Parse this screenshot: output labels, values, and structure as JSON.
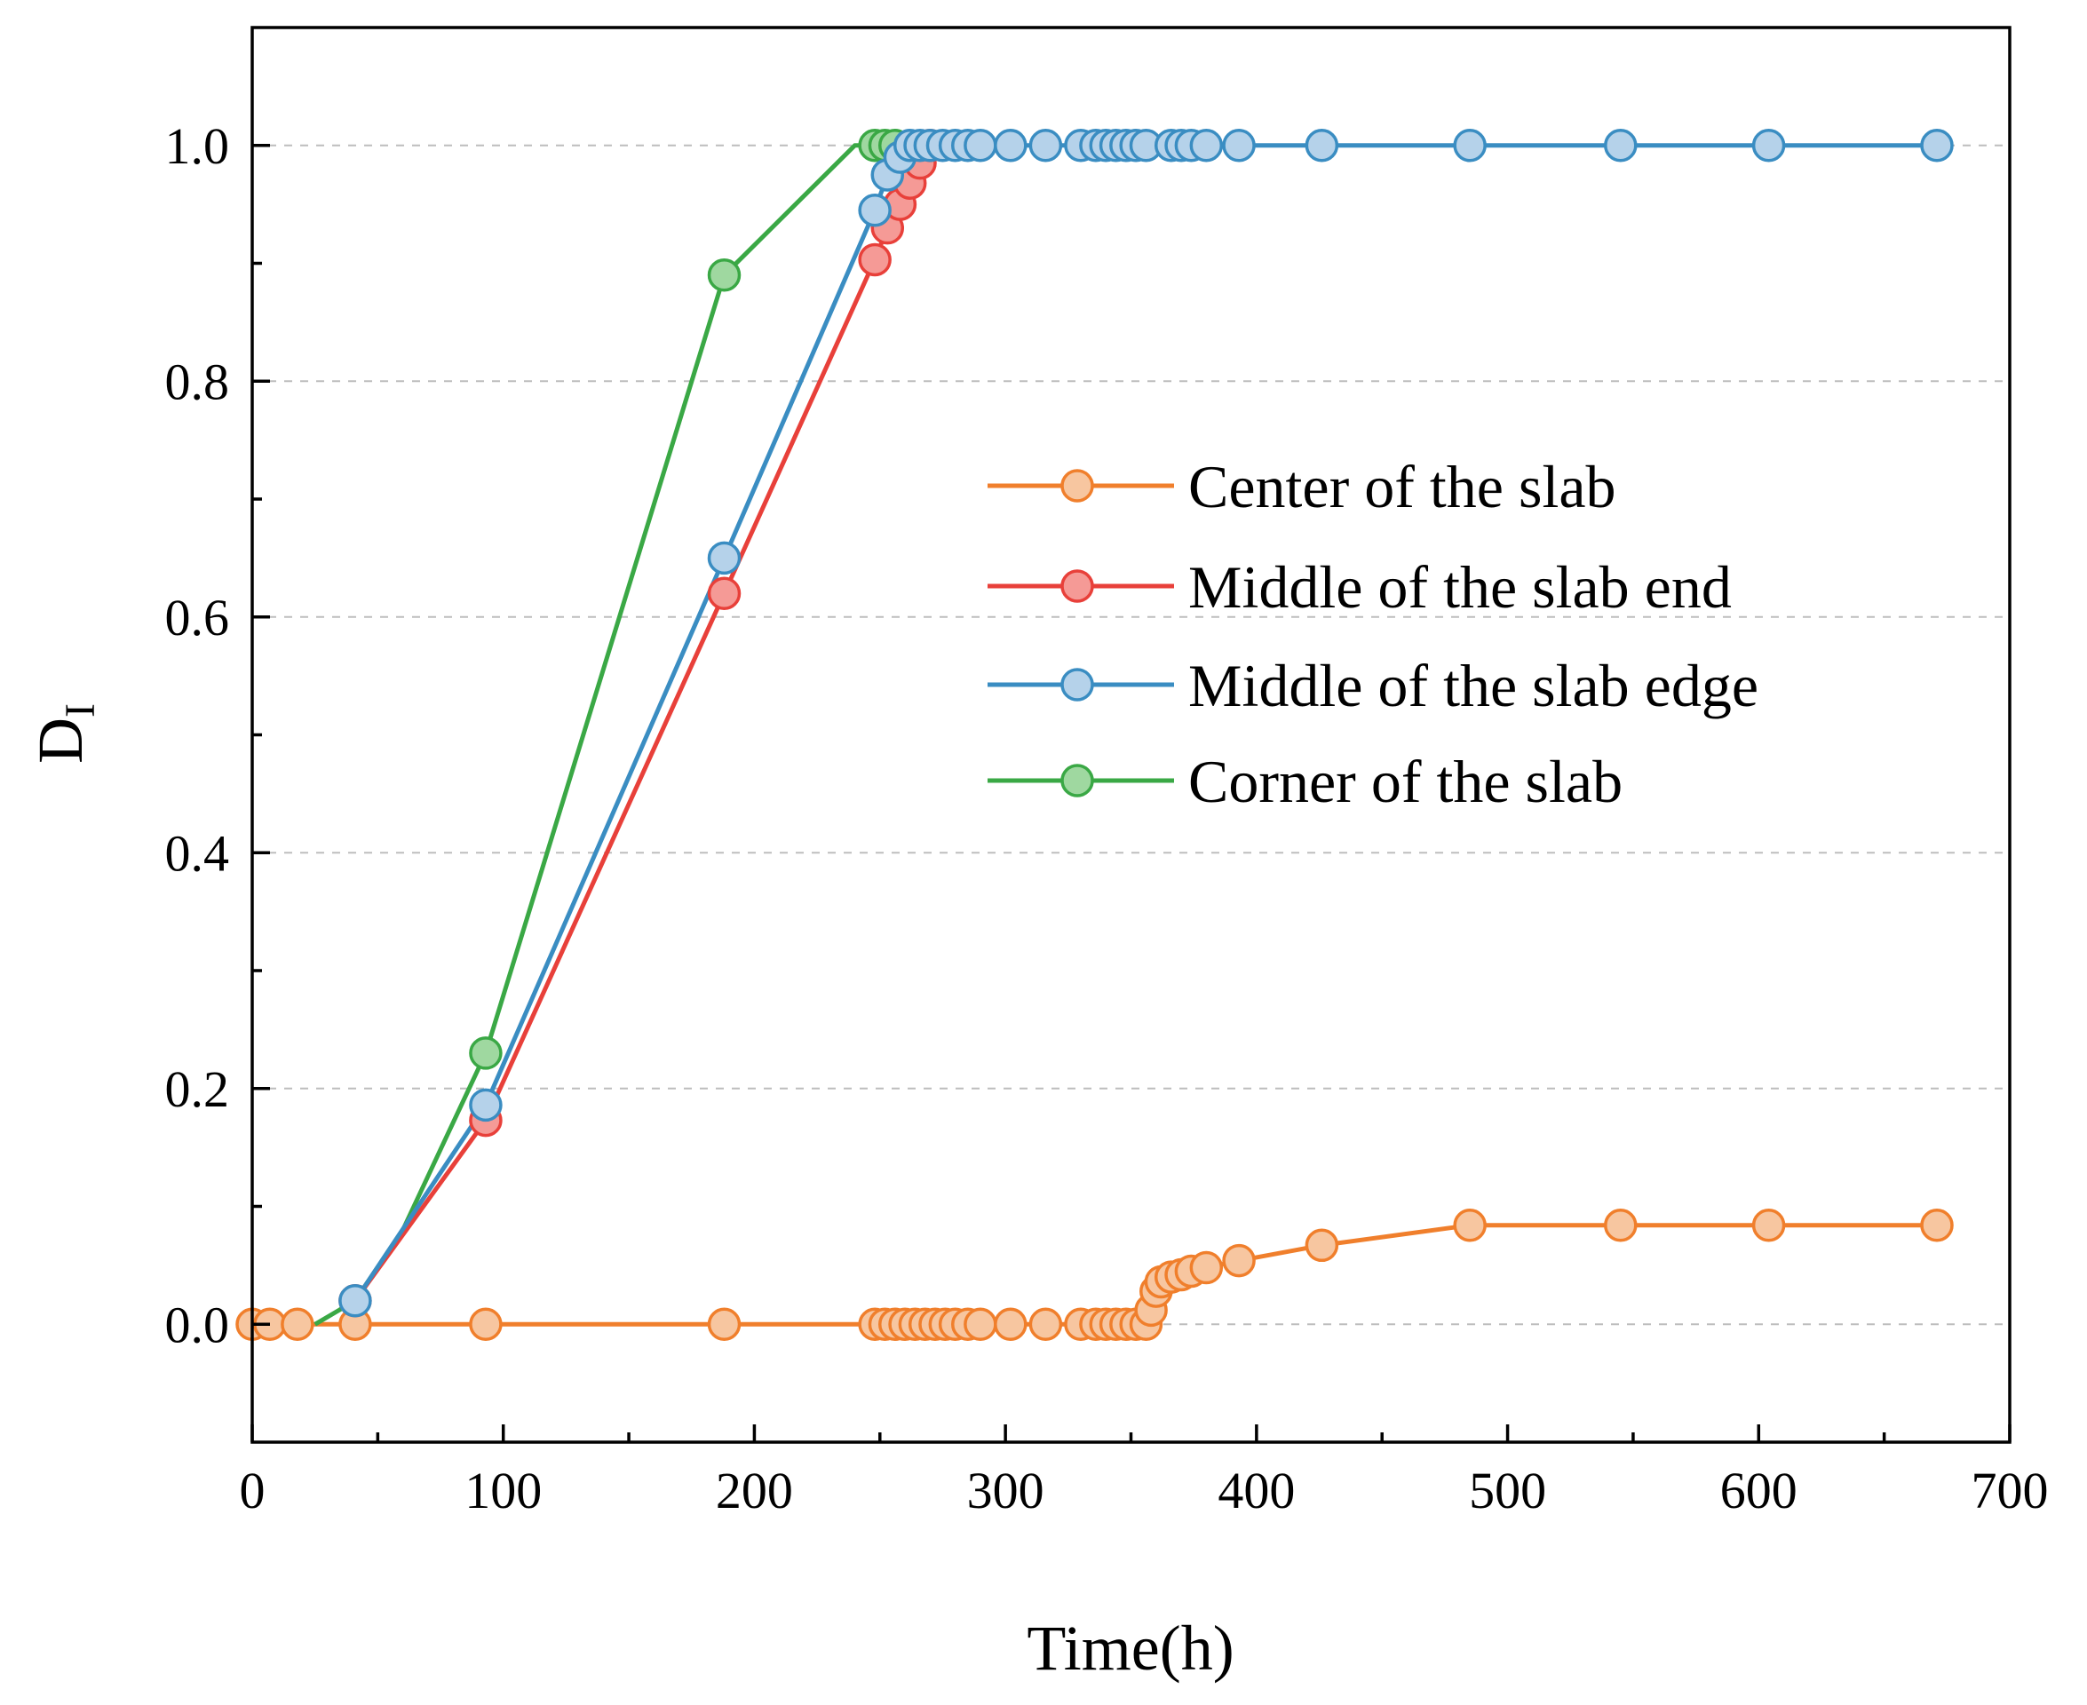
{
  "chart_data": {
    "type": "line",
    "title": "",
    "xlabel": "Time(h)",
    "ylabel_main": "D",
    "ylabel_sub": "I",
    "xlim": [
      0,
      700
    ],
    "ylim": [
      -0.1,
      1.1
    ],
    "x_ticks": [
      0,
      100,
      200,
      300,
      400,
      500,
      600,
      700
    ],
    "x_tick_labels": [
      "0",
      "100",
      "200",
      "300",
      "400",
      "500",
      "600",
      "700"
    ],
    "x_minor_ticks": [
      50,
      150,
      250,
      350,
      450,
      550,
      650
    ],
    "y_ticks": [
      0.0,
      0.2,
      0.4,
      0.6,
      0.8,
      1.0
    ],
    "y_tick_labels": [
      "0.0",
      "0.2",
      "0.4",
      "0.6",
      "0.8",
      "1.0"
    ],
    "y_minor_ticks": [
      0.1,
      0.3,
      0.5,
      0.7,
      0.9
    ],
    "grid": "horizontal dashed at major y ticks",
    "legend_position": "center-right",
    "series": [
      {
        "name": "Center of the slab",
        "color": "#f07f2c",
        "marker_fill": "#f7c6a0",
        "x": [
          0,
          7,
          18,
          41,
          93,
          188,
          248,
          252,
          256,
          260,
          264,
          268,
          272,
          276,
          280,
          285,
          290,
          302,
          316,
          330,
          336,
          340,
          344,
          348,
          352,
          356,
          358,
          360,
          362,
          366,
          370,
          374,
          380,
          393,
          426,
          485,
          545,
          604,
          671
        ],
        "y": [
          0,
          0,
          0,
          0,
          0,
          0,
          0,
          0,
          0,
          0,
          0,
          0,
          0,
          0,
          0,
          0,
          0,
          0,
          0,
          0,
          0,
          0,
          0,
          0,
          0,
          0,
          0.012,
          0.028,
          0.036,
          0.04,
          0.042,
          0.045,
          0.048,
          0.054,
          0.067,
          0.084,
          0.084,
          0.084,
          0.084
        ]
      },
      {
        "name": "Middle of the slab end",
        "color": "#e8403a",
        "marker_fill": "#f59a96",
        "x": [
          41,
          93,
          188,
          248,
          253,
          258,
          262,
          266,
          270
        ],
        "y": [
          0.02,
          0.173,
          0.62,
          0.903,
          0.93,
          0.95,
          0.968,
          0.985,
          1.0
        ]
      },
      {
        "name": "Middle of the slab edge",
        "color": "#3a8dc2",
        "marker_fill": "#b5d2ea",
        "x": [
          41,
          93,
          188,
          248,
          253,
          258,
          262,
          266,
          270,
          275,
          280,
          285,
          290,
          302,
          316,
          330,
          336,
          340,
          344,
          348,
          352,
          356,
          366,
          370,
          374,
          380,
          393,
          426,
          485,
          545,
          604,
          671
        ],
        "y": [
          0.02,
          0.186,
          0.65,
          0.945,
          0.975,
          0.99,
          1.0,
          1.0,
          1.0,
          1.0,
          1.0,
          1.0,
          1.0,
          1.0,
          1.0,
          1.0,
          1.0,
          1.0,
          1.0,
          1.0,
          1.0,
          1.0,
          1.0,
          1.0,
          1.0,
          1.0,
          1.0,
          1.0,
          1.0,
          1.0,
          1.0,
          1.0
        ]
      },
      {
        "name": "Corner of the slab",
        "color": "#3aa845",
        "marker_fill": "#9fd8a0",
        "x": [
          93,
          188,
          248,
          252,
          256
        ],
        "y": [
          0.23,
          0.89,
          1.0,
          1.0,
          1.0
        ],
        "line_x": [
          25,
          41,
          60,
          93,
          188,
          240,
          248,
          252,
          256
        ],
        "line_y": [
          0,
          0.02,
          0.08,
          0.23,
          0.89,
          1.0,
          1.0,
          1.0,
          1.0
        ]
      }
    ]
  }
}
